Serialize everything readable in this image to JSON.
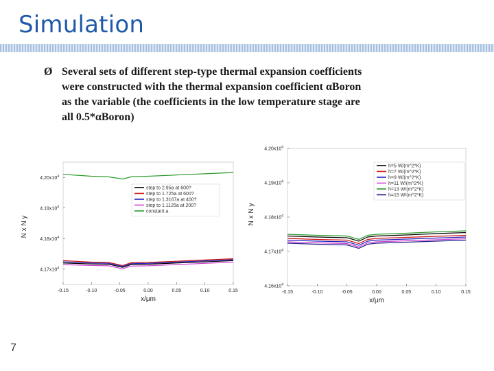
{
  "slide": {
    "title": "Simulation",
    "bullet_marker": "Ø",
    "bullet_lines": [
      "Several sets of different step-type thermal expansion coefficients",
      "were constructed with the thermal expansion coefficient αBoron",
      "as the variable (the coefficients in the low temperature stage are",
      "all 0.5*αBoron)"
    ],
    "page_number": "7"
  },
  "chart_data": [
    {
      "type": "line",
      "xlabel": "x/μm",
      "ylabel": "N x N y",
      "xlim": [
        -0.15,
        0.15
      ],
      "ylim": [
        41650,
        42050
      ],
      "xticks": [
        "-0.15",
        "-0.10",
        "-0.05",
        "0.00",
        "0.05",
        "0.10",
        "0.15"
      ],
      "yticks": [
        {
          "value": 41700,
          "mant": "4.17x10",
          "exp": "4"
        },
        {
          "value": 41800,
          "mant": "4.18x10",
          "exp": "4"
        },
        {
          "value": 41900,
          "mant": "4.19x10",
          "exp": "4"
        },
        {
          "value": 42000,
          "mant": "4.20x10",
          "exp": "4"
        }
      ],
      "legend_position": "top-right",
      "series": [
        {
          "name": "step to 2.95a at 600?",
          "color": "#000000",
          "points": [
            [
              -0.15,
              41720
            ],
            [
              -0.1,
              41717
            ],
            [
              -0.07,
              41716
            ],
            [
              -0.045,
              41706
            ],
            [
              -0.03,
              41715
            ],
            [
              0.0,
              41716
            ],
            [
              0.05,
              41720
            ],
            [
              0.1,
              41724
            ],
            [
              0.15,
              41728
            ]
          ]
        },
        {
          "name": "step to 1.725a at 600?",
          "color": "#d01010",
          "points": [
            [
              -0.15,
              41728
            ],
            [
              -0.1,
              41723
            ],
            [
              -0.07,
              41722
            ],
            [
              -0.045,
              41712
            ],
            [
              -0.03,
              41721
            ],
            [
              0.0,
              41722
            ],
            [
              0.05,
              41726
            ],
            [
              0.1,
              41730
            ],
            [
              0.15,
              41734
            ]
          ]
        },
        {
          "name": "step to 1.3167a at 400?",
          "color": "#2020c0",
          "points": [
            [
              -0.15,
              41724
            ],
            [
              -0.1,
              41720
            ],
            [
              -0.07,
              41719
            ],
            [
              -0.045,
              41709
            ],
            [
              -0.03,
              41718
            ],
            [
              0.0,
              41719
            ],
            [
              0.05,
              41723
            ],
            [
              0.1,
              41727
            ],
            [
              0.15,
              41731
            ]
          ]
        },
        {
          "name": "step to 1.1125a at 200?",
          "color": "#d040d0",
          "points": [
            [
              -0.15,
              41715
            ],
            [
              -0.1,
              41712
            ],
            [
              -0.07,
              41711
            ],
            [
              -0.045,
              41701
            ],
            [
              -0.03,
              41710
            ],
            [
              0.0,
              41711
            ],
            [
              0.05,
              41715
            ],
            [
              0.1,
              41719
            ],
            [
              0.15,
              41723
            ]
          ]
        },
        {
          "name": "constant a",
          "color": "#2a9a2a",
          "points": [
            [
              -0.15,
              42010
            ],
            [
              -0.1,
              42004
            ],
            [
              -0.07,
              42002
            ],
            [
              -0.045,
              41995
            ],
            [
              -0.03,
              42002
            ],
            [
              0.0,
              42004
            ],
            [
              0.05,
              42008
            ],
            [
              0.1,
              42012
            ],
            [
              0.15,
              42016
            ]
          ]
        }
      ]
    },
    {
      "type": "line",
      "xlabel": "x/μm",
      "ylabel": "N x N y",
      "xlim": [
        -0.15,
        0.15
      ],
      "ylim": [
        41600,
        42000
      ],
      "xticks": [
        "-0.15",
        "-0.10",
        "-0.05",
        "0.00",
        "0.05",
        "0.10",
        "0.15"
      ],
      "yticks": [
        {
          "value": 41600,
          "mant": "4.16x10",
          "exp": "4"
        },
        {
          "value": 41700,
          "mant": "4.17x10",
          "exp": "4"
        },
        {
          "value": 41800,
          "mant": "4.18x10",
          "exp": "4"
        },
        {
          "value": 41900,
          "mant": "4.19x10",
          "exp": "4"
        },
        {
          "value": 42000,
          "mant": "4.20x10",
          "exp": "4"
        }
      ],
      "legend_position": "top-right",
      "series": [
        {
          "name": "h=5 W/(m^2*K)",
          "color": "#000000",
          "points": [
            [
              -0.15,
              41745
            ],
            [
              -0.1,
              41742
            ],
            [
              -0.05,
              41740
            ],
            [
              -0.03,
              41730
            ],
            [
              -0.015,
              41742
            ],
            [
              0.0,
              41745
            ],
            [
              0.05,
              41748
            ],
            [
              0.1,
              41752
            ],
            [
              0.15,
              41755
            ]
          ]
        },
        {
          "name": "h=7 W/(m^2*K)",
          "color": "#d01010",
          "points": [
            [
              -0.15,
              41738
            ],
            [
              -0.1,
              41735
            ],
            [
              -0.05,
              41733
            ],
            [
              -0.03,
              41723
            ],
            [
              -0.015,
              41735
            ],
            [
              0.0,
              41738
            ],
            [
              0.05,
              41741
            ],
            [
              0.1,
              41744
            ],
            [
              0.15,
              41747
            ]
          ]
        },
        {
          "name": "h=9 W/(m^2*K)",
          "color": "#2020c0",
          "points": [
            [
              -0.15,
              41733
            ],
            [
              -0.1,
              41730
            ],
            [
              -0.05,
              41728
            ],
            [
              -0.03,
              41718
            ],
            [
              -0.015,
              41730
            ],
            [
              0.0,
              41733
            ],
            [
              0.05,
              41736
            ],
            [
              0.1,
              41739
            ],
            [
              0.15,
              41742
            ]
          ]
        },
        {
          "name": "h=11 W/(m^2*K)",
          "color": "#d040d0",
          "points": [
            [
              -0.15,
              41728
            ],
            [
              -0.1,
              41725
            ],
            [
              -0.05,
              41723
            ],
            [
              -0.03,
              41713
            ],
            [
              -0.015,
              41725
            ],
            [
              0.0,
              41728
            ],
            [
              0.05,
              41731
            ],
            [
              0.1,
              41734
            ],
            [
              0.15,
              41737
            ]
          ]
        },
        {
          "name": "h=13 W/(m^2*K)",
          "color": "#2a9a2a",
          "points": [
            [
              -0.15,
              41750
            ],
            [
              -0.1,
              41747
            ],
            [
              -0.05,
              41745
            ],
            [
              -0.03,
              41735
            ],
            [
              -0.015,
              41747
            ],
            [
              0.0,
              41750
            ],
            [
              0.05,
              41753
            ],
            [
              0.1,
              41757
            ],
            [
              0.15,
              41760
            ]
          ]
        },
        {
          "name": "h=15 W/(m^2*K)",
          "color": "#20208a",
          "points": [
            [
              -0.15,
              41724
            ],
            [
              -0.1,
              41721
            ],
            [
              -0.05,
              41719
            ],
            [
              -0.03,
              41709
            ],
            [
              -0.015,
              41721
            ],
            [
              0.0,
              41724
            ],
            [
              0.05,
              41727
            ],
            [
              0.1,
              41730
            ],
            [
              0.15,
              41733
            ]
          ]
        }
      ]
    }
  ]
}
